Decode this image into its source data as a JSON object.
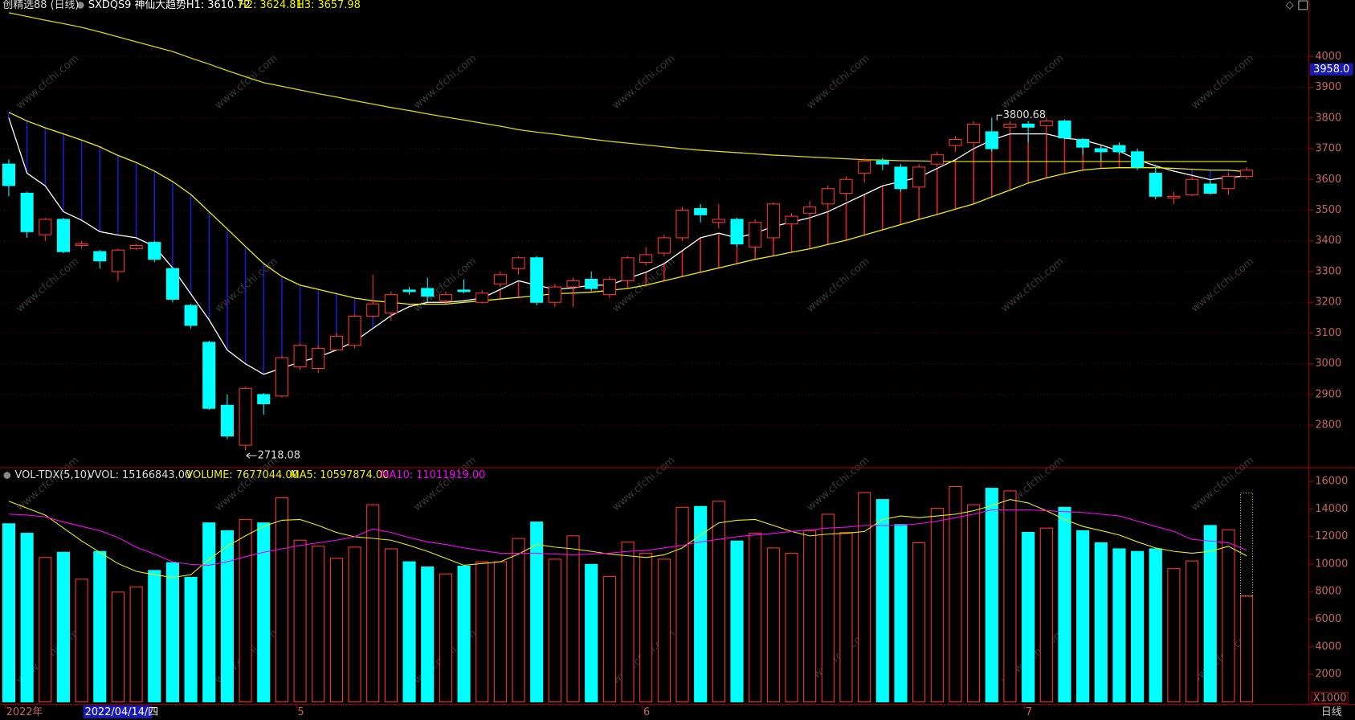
{
  "chart_data": [
    {
      "type": "candlestick",
      "title": "创精选88 (日线)",
      "categories": [
        "2022年",
        null,
        null,
        null,
        null,
        null,
        null,
        null,
        null,
        null,
        null,
        null,
        null,
        null,
        null,
        null,
        "5",
        null,
        null,
        null,
        null,
        null,
        null,
        null,
        null,
        null,
        null,
        null,
        null,
        null,
        null,
        null,
        null,
        null,
        null,
        "6",
        null,
        null,
        null,
        null,
        null,
        null,
        null,
        null,
        null,
        null,
        null,
        null,
        null,
        null,
        null,
        null,
        null,
        null,
        null,
        null,
        "7",
        null,
        null,
        null,
        null,
        null,
        null,
        null,
        null,
        null,
        null,
        null,
        null
      ],
      "open": [
        3650,
        3555,
        3420,
        3470,
        3385,
        3365,
        3300,
        3375,
        3395,
        3310,
        3190,
        3070,
        2865,
        2735,
        2900,
        2895,
        2990,
        2985,
        3045,
        3060,
        3155,
        3165,
        3240,
        3245,
        3205,
        3240,
        3200,
        3260,
        3310,
        3345,
        3200,
        3250,
        3275,
        3225,
        3270,
        3330,
        3360,
        3410,
        3505,
        3460,
        3470,
        3380,
        3410,
        3455,
        3490,
        3520,
        3555,
        3620,
        3660,
        3640,
        3575,
        3650,
        3710,
        3720,
        3755,
        3770,
        3780,
        3775,
        3790,
        3730,
        3700,
        3710,
        3690,
        3620,
        3540,
        3550,
        3585,
        3570,
        3610
      ],
      "high": [
        3665,
        3560,
        3475,
        3475,
        3400,
        3370,
        3375,
        3390,
        3400,
        3315,
        3195,
        3075,
        2900,
        2925,
        2905,
        3025,
        3065,
        3060,
        3100,
        3160,
        3290,
        3235,
        3250,
        3280,
        3235,
        3275,
        3240,
        3300,
        3350,
        3350,
        3260,
        3280,
        3300,
        3285,
        3350,
        3380,
        3420,
        3510,
        3520,
        3520,
        3475,
        3470,
        3525,
        3490,
        3530,
        3580,
        3610,
        3670,
        3670,
        3650,
        3650,
        3690,
        3740,
        3790,
        3800.68,
        3790,
        3790,
        3800,
        3795,
        3735,
        3710,
        3720,
        3700,
        3640,
        3560,
        3610,
        3600,
        3620,
        3640
      ],
      "low": [
        3545,
        3410,
        3400,
        3360,
        3375,
        3310,
        3270,
        3370,
        3330,
        3200,
        3115,
        2850,
        2755,
        2718.08,
        2835,
        2890,
        2980,
        2970,
        3040,
        3050,
        3150,
        3140,
        3225,
        3200,
        3195,
        3230,
        3195,
        3250,
        3290,
        3190,
        3185,
        3185,
        3240,
        3215,
        3260,
        3320,
        3350,
        3400,
        3460,
        3440,
        3380,
        3360,
        3400,
        3440,
        3460,
        3500,
        3530,
        3590,
        3630,
        3560,
        3570,
        3640,
        3690,
        3700,
        3690,
        3750,
        3720,
        3740,
        3730,
        3680,
        3660,
        3680,
        3630,
        3535,
        3520,
        3545,
        3550,
        3550,
        3600
      ],
      "close": [
        3580,
        3430,
        3470,
        3365,
        3390,
        3335,
        3370,
        3385,
        3340,
        3210,
        3125,
        2855,
        2765,
        2920,
        2870,
        3020,
        3060,
        3050,
        3090,
        3155,
        3195,
        3225,
        3235,
        3220,
        3225,
        3235,
        3230,
        3290,
        3345,
        3200,
        3250,
        3270,
        3245,
        3275,
        3345,
        3355,
        3410,
        3500,
        3485,
        3470,
        3390,
        3460,
        3520,
        3480,
        3510,
        3570,
        3600,
        3660,
        3650,
        3570,
        3640,
        3680,
        3730,
        3780,
        3700,
        3780,
        3770,
        3790,
        3735,
        3705,
        3690,
        3690,
        3640,
        3545,
        3545,
        3600,
        3555,
        3610,
        3630
      ],
      "up_color": "#ff3232",
      "down_color": "#00ffff",
      "fill_up_color": "#e02020",
      "fill_down_color": "#1a1ad0",
      "series": [
        {
          "name": "SXDQS9 神仙大趋势H1: 3610.72",
          "color": "#ffffff",
          "values": [
            3800,
            3620,
            3579,
            3495,
            3467,
            3430,
            3419,
            3410,
            3382,
            3312,
            3227,
            3143,
            3045,
            3000,
            2966,
            2986,
            3006,
            3022,
            3045,
            3073,
            3115,
            3157,
            3186,
            3200,
            3200,
            3205,
            3214,
            3242,
            3270,
            3256,
            3242,
            3247,
            3256,
            3256,
            3278,
            3298,
            3326,
            3368,
            3410,
            3425,
            3410,
            3425,
            3447,
            3461,
            3475,
            3495,
            3523,
            3551,
            3579,
            3593,
            3607,
            3636,
            3664,
            3700,
            3728,
            3748,
            3748,
            3748,
            3734,
            3728,
            3712,
            3692,
            3664,
            3644,
            3627,
            3613,
            3599,
            3607,
            3610.72
          ]
        },
        {
          "name": "H2: 3624.81",
          "color": "#f0f000",
          "values": [
            3818,
            3790,
            3768,
            3748,
            3728,
            3706,
            3678,
            3655,
            3627,
            3593,
            3551,
            3495,
            3439,
            3382,
            3326,
            3284,
            3256,
            3242,
            3228,
            3214,
            3205,
            3200,
            3194,
            3194,
            3194,
            3200,
            3205,
            3211,
            3216,
            3222,
            3228,
            3230,
            3233,
            3239,
            3245,
            3256,
            3270,
            3284,
            3298,
            3312,
            3326,
            3340,
            3351,
            3363,
            3374,
            3388,
            3402,
            3419,
            3436,
            3453,
            3470,
            3486,
            3503,
            3520,
            3543,
            3565,
            3588,
            3605,
            3619,
            3630,
            3636,
            3638,
            3638,
            3638,
            3636,
            3633,
            3630,
            3630,
            3624.81
          ]
        },
        {
          "name": "H3: 3657.98",
          "color": "#d8d800",
          "values": [
            4142,
            4130,
            4118,
            4107,
            4095,
            4080,
            4064,
            4048,
            4032,
            4016,
            3995,
            3975,
            3954,
            3934,
            3915,
            3903,
            3891,
            3879,
            3868,
            3856,
            3845,
            3834,
            3824,
            3813,
            3803,
            3793,
            3783,
            3773,
            3762,
            3754,
            3747,
            3739,
            3731,
            3724,
            3718,
            3712,
            3706,
            3700,
            3695,
            3691,
            3687,
            3683,
            3679,
            3676,
            3673,
            3670,
            3667,
            3664,
            3663,
            3661,
            3660,
            3659,
            3658,
            3658,
            3658,
            3658,
            3658,
            3658,
            3658,
            3658,
            3658,
            3658,
            3658,
            3658,
            3658,
            3658,
            3658,
            3658,
            3657.98
          ]
        }
      ],
      "ylim": [
        2665,
        4150
      ],
      "yticks": [
        2800,
        2900,
        3000,
        3100,
        3200,
        3300,
        3400,
        3500,
        3600,
        3700,
        3800,
        3900,
        4000
      ],
      "grid": true,
      "annotations": [
        "3800.68",
        "2718.08"
      ],
      "cursor_price": {
        "value": 3958,
        "label": "3958.0"
      },
      "cursor_date": "2022/04/14/四",
      "watermark": "www.cfchi.com"
    },
    {
      "type": "bar",
      "title": "VOL-TDX(5,10)",
      "vvol_label": "VVOL: 15166843.00",
      "vvol": 15166.843,
      "up_color": "#ff3232",
      "down_color": "#00ffff",
      "series": [
        {
          "name": "VOLUME: 7677044.00",
          "color": "#f0f000",
          "values": [
            12927,
            12236,
            10479,
            10856,
            8911,
            10919,
            7969,
            8346,
            9538,
            10103,
            9036,
            12989,
            12425,
            13240,
            12989,
            14809,
            11734,
            11295,
            10417,
            11232,
            14307,
            11107,
            10166,
            9789,
            9287,
            9852,
            10166,
            10166,
            11860,
            13052,
            10354,
            12048,
            9977,
            9099,
            11609,
            10793,
            10354,
            14119,
            14182,
            14558,
            11672,
            12236,
            11170,
            10793,
            12425,
            13617,
            12299,
            15186,
            14684,
            12864,
            11546,
            14056,
            15625,
            14307,
            15500,
            15311,
            12299,
            12613,
            14119,
            12425,
            11546,
            11107,
            10919,
            11107,
            9664,
            10228,
            12801,
            12487,
            7677.044
          ]
        },
        {
          "name": "MA5: 10597874.00",
          "color": "#f0f000",
          "values": [
            14558,
            14056,
            13554,
            12613,
            11672,
            10856,
            10040,
            9475,
            9224,
            9036,
            9224,
            10354,
            11295,
            12048,
            12738,
            13178,
            13240,
            12801,
            12299,
            11985,
            11860,
            11734,
            11358,
            10919,
            10417,
            9915,
            10040,
            10166,
            10730,
            11421,
            11232,
            11107,
            10919,
            10730,
            10605,
            10479,
            10668,
            11170,
            12111,
            12989,
            13178,
            13240,
            12801,
            12362,
            12048,
            12174,
            12236,
            12362,
            13240,
            13491,
            13366,
            13491,
            13617,
            13868,
            14244,
            14684,
            14433,
            13868,
            13240,
            12738,
            12425,
            12111,
            11609,
            11170,
            10919,
            10793,
            10919,
            11295,
            10597.874
          ]
        },
        {
          "name": "MA10: 11011919.00",
          "color": "#ff00ff",
          "values": [
            13617,
            13554,
            13429,
            13052,
            12738,
            12425,
            11923,
            11232,
            10730,
            10166,
            9977,
            9915,
            10166,
            10542,
            10856,
            11107,
            11358,
            11546,
            11734,
            11985,
            12550,
            12299,
            11923,
            11609,
            11421,
            11170,
            10981,
            10793,
            10793,
            10793,
            10730,
            10668,
            10730,
            10793,
            10919,
            10981,
            11170,
            11358,
            11609,
            11797,
            11985,
            12111,
            12236,
            12362,
            12487,
            12613,
            12676,
            12801,
            12801,
            12801,
            12927,
            13115,
            13366,
            13617,
            13931,
            13931,
            13931,
            13868,
            13805,
            13742,
            13617,
            13491,
            13115,
            12738,
            12362,
            11797,
            11672,
            11546,
            11011.919
          ]
        }
      ],
      "ylim": [
        0,
        16750
      ],
      "yticks": [
        2000,
        4000,
        6000,
        8000,
        10000,
        12000,
        14000,
        16000
      ],
      "unit_label": "X1000",
      "period_label": "日线"
    }
  ]
}
